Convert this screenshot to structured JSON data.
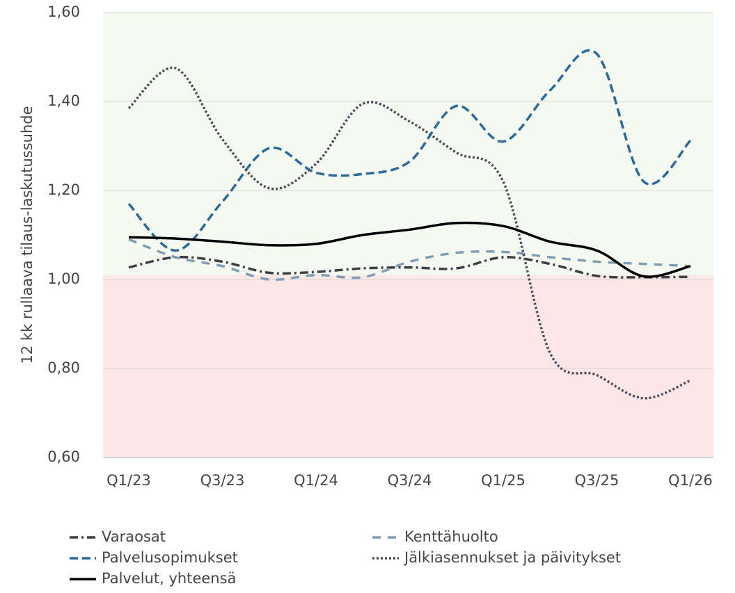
{
  "chart_data": {
    "type": "line",
    "y_label": "12 kk rullaava tilaus-laskutussuhde",
    "categories": [
      "Q1/23",
      null,
      "Q3/23",
      null,
      "Q1/24",
      null,
      "Q3/24",
      null,
      "Q1/25",
      null,
      "Q3/25",
      null,
      "Q1/26"
    ],
    "ylim": [
      0.6,
      1.6
    ],
    "yticks": [
      {
        "value": 0.6,
        "label": "0,60"
      },
      {
        "value": 0.8,
        "label": "0,80"
      },
      {
        "value": 1.0,
        "label": "1,00"
      },
      {
        "value": 1.2,
        "label": "1,20"
      },
      {
        "value": 1.4,
        "label": "1,40"
      },
      {
        "value": 1.6,
        "label": "1,60"
      }
    ],
    "grid": true,
    "smooth": true,
    "bands": [
      {
        "from": 1.01,
        "to": 1.6,
        "color": "#f5faf1"
      },
      {
        "from": 0.6,
        "to": 1.01,
        "color": "#fce6e6"
      }
    ],
    "legend": "bottom",
    "series": [
      {
        "name": "Varaosat",
        "color": "#3d3f45",
        "dash": "12 5 3 5",
        "values": [
          1.027,
          1.05,
          1.04,
          1.015,
          1.017,
          1.025,
          1.027,
          1.025,
          1.05,
          1.035,
          1.008,
          1.005,
          1.006
        ]
      },
      {
        "name": "Kenttähuolto",
        "color": "#7f9db3",
        "dash": "12 10",
        "values": [
          1.09,
          1.05,
          1.03,
          1.0,
          1.01,
          1.005,
          1.04,
          1.06,
          1.062,
          1.05,
          1.04,
          1.035,
          1.03
        ]
      },
      {
        "name": "Palvelusopimukset",
        "color": "#2a6a9e",
        "dash": "12 6",
        "values": [
          1.17,
          1.065,
          1.175,
          1.295,
          1.24,
          1.237,
          1.265,
          1.39,
          1.31,
          1.425,
          1.507,
          1.22,
          1.312
        ]
      },
      {
        "name": "Jälkiasennukset ja päivitykset",
        "color": "#4a4f5c",
        "dash": "3 3",
        "values": [
          1.385,
          1.475,
          1.315,
          1.205,
          1.26,
          1.395,
          1.355,
          1.285,
          1.22,
          0.835,
          0.785,
          0.733,
          0.773
        ]
      },
      {
        "name": "Palvelut, yhteensä",
        "color": "#000000",
        "dash": null,
        "values": [
          1.095,
          1.092,
          1.085,
          1.077,
          1.08,
          1.1,
          1.112,
          1.127,
          1.12,
          1.085,
          1.065,
          1.007,
          1.03
        ]
      }
    ]
  }
}
